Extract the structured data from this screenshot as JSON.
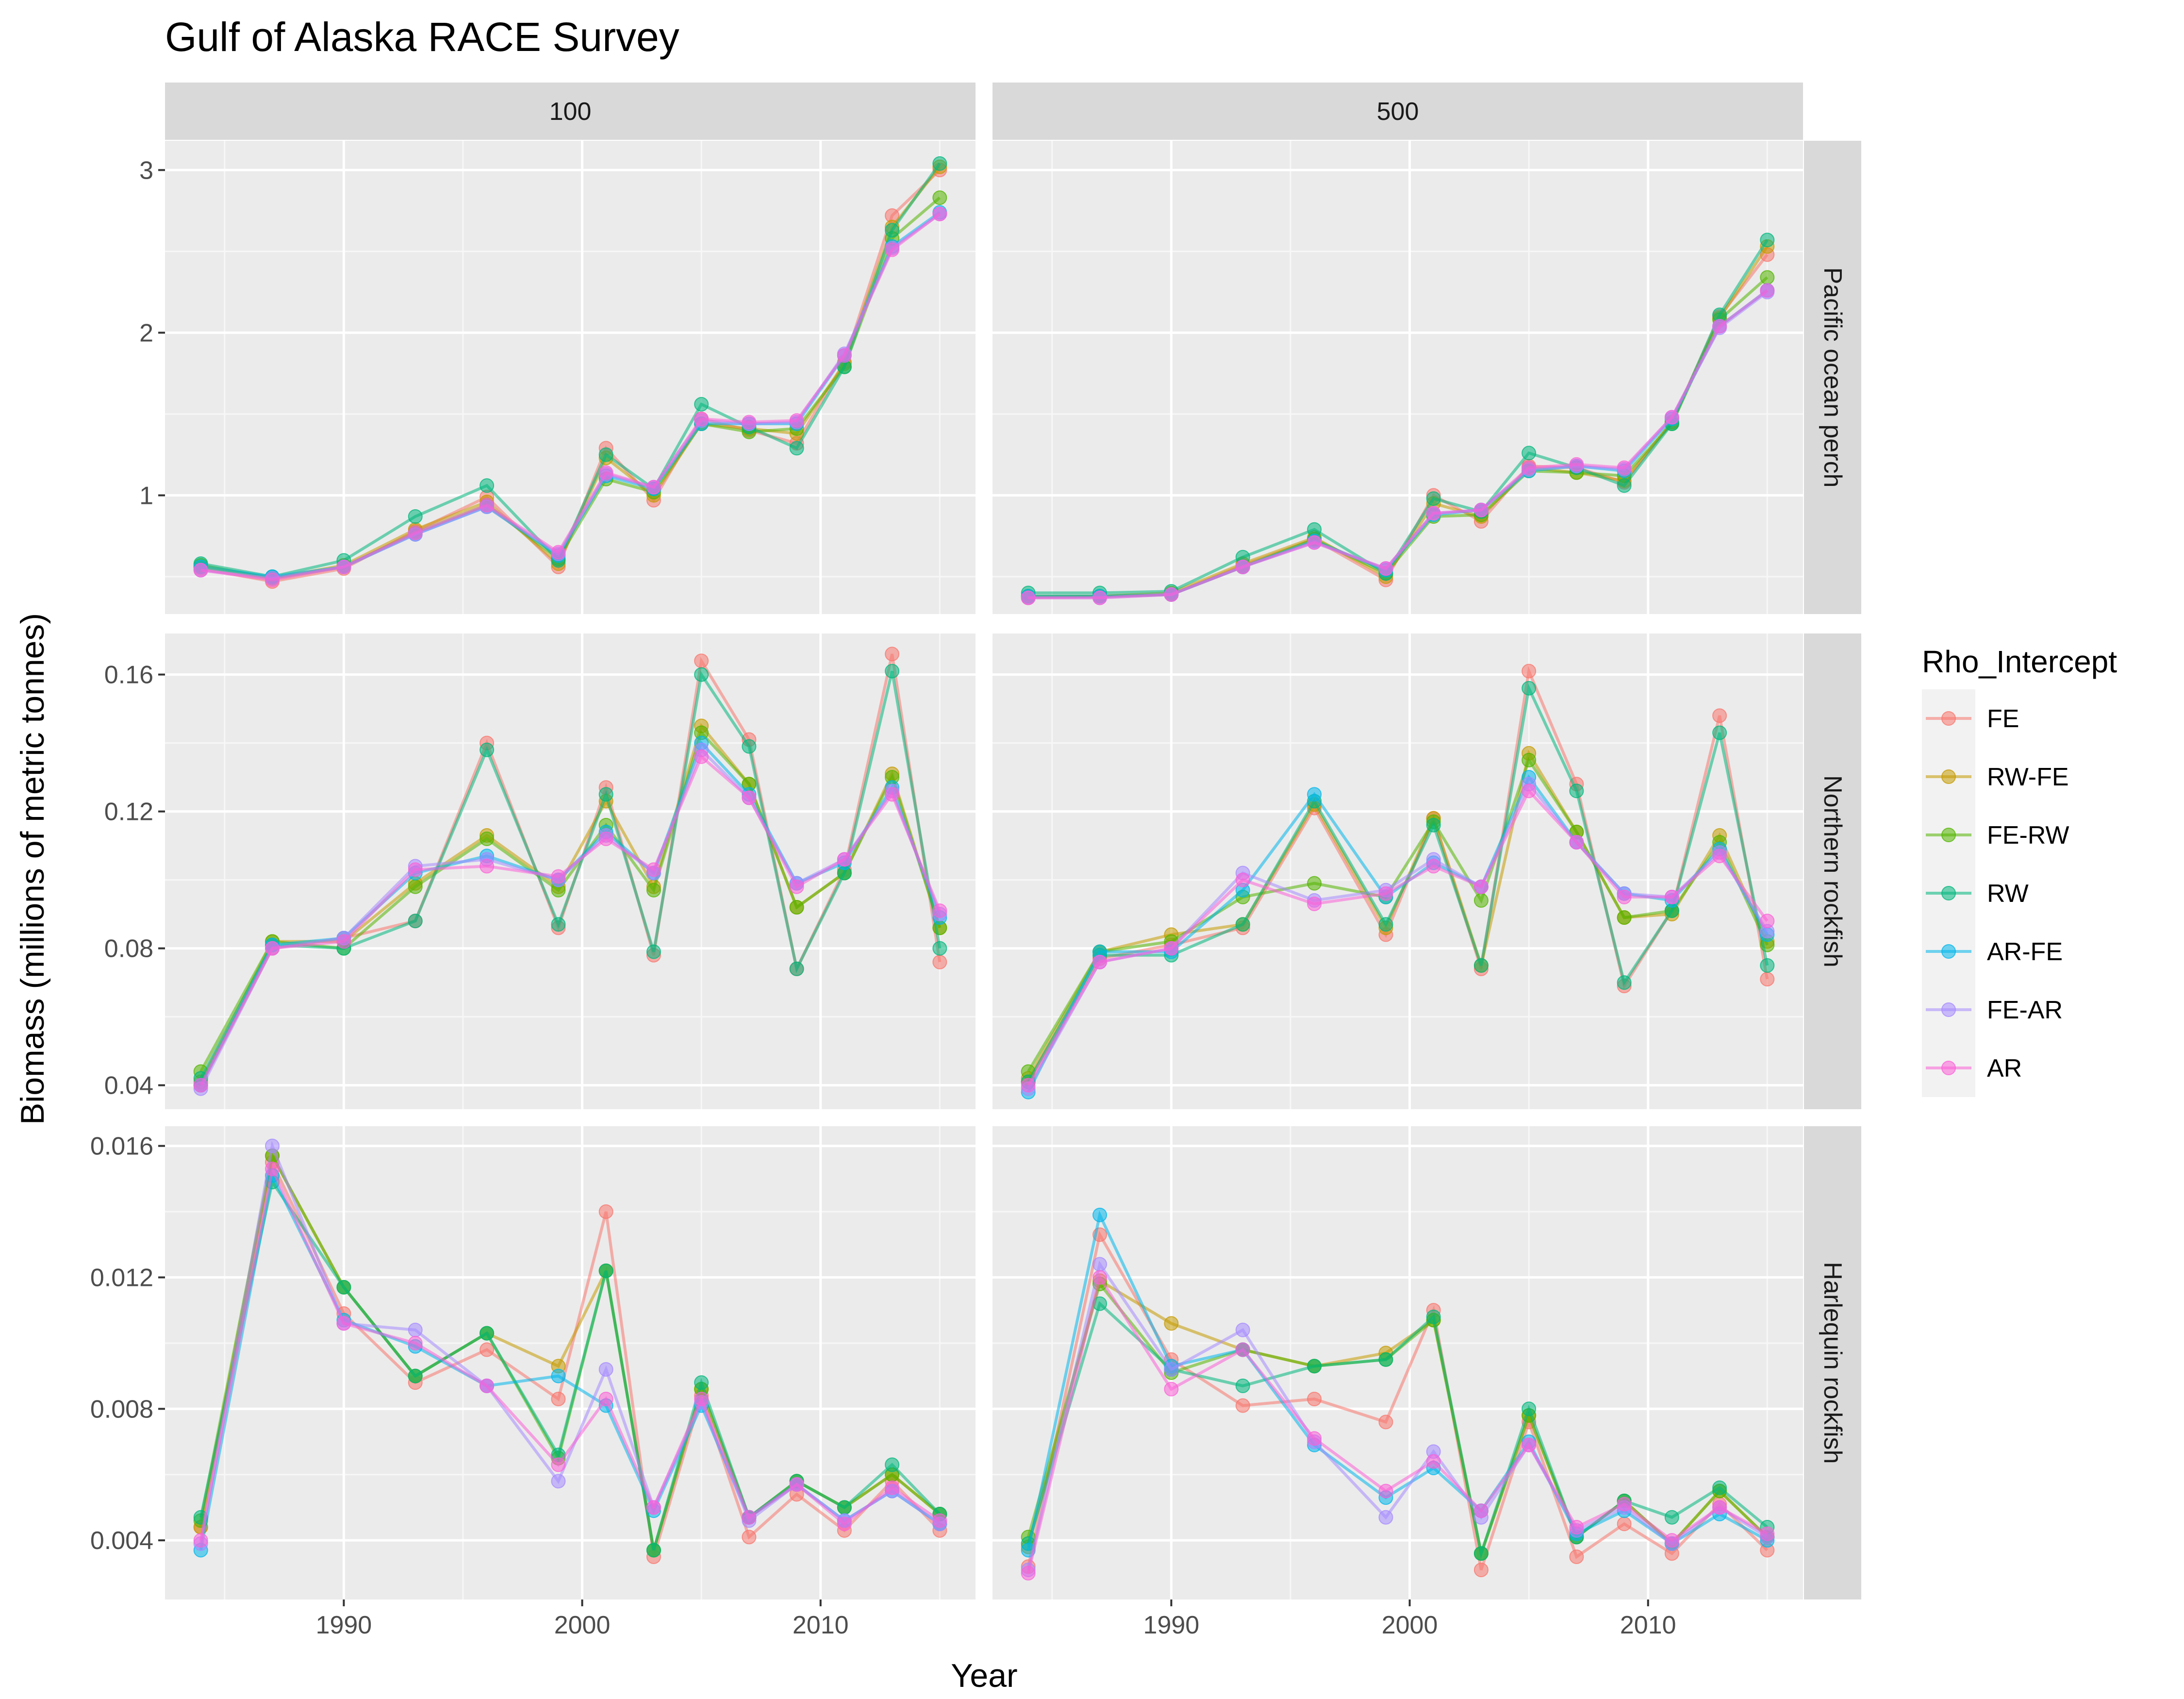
{
  "chart_data": {
    "type": "line",
    "title": "Gulf of Alaska RACE Survey",
    "xlabel": "Year",
    "ylabel": "Biomass (millions of metric tonnes)",
    "x_ticks": [
      "1990",
      "2000",
      "2010"
    ],
    "x_tick_values": [
      1990,
      2000,
      2010
    ],
    "xlim": [
      1982.5,
      2016.5
    ],
    "x": [
      1984,
      1987,
      1990,
      1993,
      1996,
      1999,
      2001,
      2003,
      2005,
      2007,
      2009,
      2011,
      2013,
      2015
    ],
    "legend_title": "Rho_Intercept",
    "legend_position": "right",
    "grid": true,
    "columns": [
      "100",
      "500"
    ],
    "rows": [
      {
        "label": "Pacific ocean perch",
        "ylim": [
          0.27,
          3.18
        ],
        "ticks": [
          1,
          2,
          3
        ],
        "tick_labels": [
          "1",
          "2",
          "3"
        ]
      },
      {
        "label": "Northern rockfish",
        "ylim": [
          0.033,
          0.172
        ],
        "ticks": [
          0.04,
          0.08,
          0.12,
          0.16
        ],
        "tick_labels": [
          "0.04",
          "0.08",
          "0.12",
          "0.16"
        ]
      },
      {
        "label": "Harlequin rockfish",
        "ylim": [
          0.0022,
          0.0166
        ],
        "ticks": [
          0.004,
          0.008,
          0.012,
          0.016
        ],
        "tick_labels": [
          "0.004",
          "0.008",
          "0.012",
          "0.016"
        ]
      }
    ],
    "series": [
      {
        "name": "FE",
        "color": "#F8766D"
      },
      {
        "name": "RW-FE",
        "color": "#C49A00"
      },
      {
        "name": "FE-RW",
        "color": "#53B400"
      },
      {
        "name": "RW",
        "color": "#00B67C"
      },
      {
        "name": "AR-FE",
        "color": "#00B6EB"
      },
      {
        "name": "FE-AR",
        "color": "#A58AFF"
      },
      {
        "name": "AR",
        "color": "#FB61D7"
      }
    ],
    "panels": [
      {
        "row": 0,
        "col": 0,
        "values": {
          "FE": [
            0.55,
            0.47,
            0.55,
            0.78,
            0.99,
            0.56,
            1.29,
            0.97,
            1.47,
            1.4,
            1.32,
            1.82,
            2.72,
            3.0
          ],
          "RW-FE": [
            0.56,
            0.49,
            0.57,
            0.79,
            0.96,
            0.58,
            1.23,
            1.0,
            1.44,
            1.41,
            1.38,
            1.81,
            2.65,
            3.02
          ],
          "FE-RW": [
            0.57,
            0.49,
            0.56,
            0.77,
            0.94,
            0.61,
            1.1,
            1.02,
            1.44,
            1.39,
            1.41,
            1.79,
            2.58,
            2.83
          ],
          "RW": [
            0.58,
            0.5,
            0.6,
            0.87,
            1.06,
            0.6,
            1.25,
            1.04,
            1.56,
            1.42,
            1.29,
            1.79,
            2.63,
            3.04
          ],
          "AR-FE": [
            0.56,
            0.5,
            0.56,
            0.76,
            0.93,
            0.63,
            1.12,
            1.04,
            1.44,
            1.44,
            1.44,
            1.86,
            2.53,
            2.74
          ],
          "FE-AR": [
            0.54,
            0.49,
            0.56,
            0.76,
            0.93,
            0.64,
            1.13,
            1.05,
            1.46,
            1.44,
            1.45,
            1.87,
            2.52,
            2.73
          ],
          "AR": [
            0.54,
            0.48,
            0.56,
            0.77,
            0.94,
            0.65,
            1.14,
            1.05,
            1.47,
            1.45,
            1.46,
            1.86,
            2.51,
            2.73
          ]
        }
      },
      {
        "row": 0,
        "col": 1,
        "values": {
          "FE": [
            0.37,
            0.38,
            0.39,
            0.57,
            0.73,
            0.48,
            1.0,
            0.84,
            1.18,
            1.17,
            1.08,
            1.45,
            2.1,
            2.48
          ],
          "RW-FE": [
            0.38,
            0.38,
            0.4,
            0.58,
            0.74,
            0.5,
            0.95,
            0.87,
            1.17,
            1.14,
            1.09,
            1.45,
            2.09,
            2.53
          ],
          "FE-RW": [
            0.38,
            0.38,
            0.39,
            0.56,
            0.73,
            0.52,
            0.87,
            0.88,
            1.15,
            1.14,
            1.12,
            1.44,
            2.08,
            2.34
          ],
          "RW": [
            0.4,
            0.4,
            0.41,
            0.62,
            0.79,
            0.52,
            0.98,
            0.9,
            1.26,
            1.17,
            1.06,
            1.44,
            2.11,
            2.57
          ],
          "AR-FE": [
            0.38,
            0.38,
            0.39,
            0.56,
            0.72,
            0.54,
            0.88,
            0.91,
            1.15,
            1.18,
            1.15,
            1.47,
            2.04,
            2.26
          ],
          "FE-AR": [
            0.37,
            0.37,
            0.39,
            0.56,
            0.71,
            0.55,
            0.89,
            0.91,
            1.16,
            1.18,
            1.16,
            1.48,
            2.03,
            2.25
          ],
          "AR": [
            0.37,
            0.37,
            0.39,
            0.56,
            0.71,
            0.55,
            0.89,
            0.91,
            1.17,
            1.19,
            1.17,
            1.48,
            2.04,
            2.26
          ]
        }
      },
      {
        "row": 1,
        "col": 0,
        "values": {
          "FE": [
            0.04,
            0.08,
            0.083,
            0.088,
            0.14,
            0.086,
            0.127,
            0.078,
            0.164,
            0.141,
            0.074,
            0.103,
            0.166,
            0.076
          ],
          "RW-FE": [
            0.041,
            0.082,
            0.082,
            0.099,
            0.113,
            0.098,
            0.123,
            0.098,
            0.145,
            0.128,
            0.092,
            0.102,
            0.131,
            0.086
          ],
          "FE-RW": [
            0.044,
            0.082,
            0.08,
            0.098,
            0.112,
            0.097,
            0.116,
            0.097,
            0.143,
            0.128,
            0.092,
            0.102,
            0.13,
            0.086
          ],
          "RW": [
            0.042,
            0.081,
            0.08,
            0.088,
            0.138,
            0.087,
            0.125,
            0.079,
            0.16,
            0.139,
            0.074,
            0.102,
            0.161,
            0.08
          ],
          "AR-FE": [
            0.04,
            0.081,
            0.083,
            0.102,
            0.107,
            0.1,
            0.114,
            0.102,
            0.14,
            0.125,
            0.099,
            0.105,
            0.127,
            0.089
          ],
          "FE-AR": [
            0.039,
            0.08,
            0.083,
            0.104,
            0.106,
            0.1,
            0.113,
            0.102,
            0.138,
            0.124,
            0.099,
            0.106,
            0.126,
            0.09
          ],
          "AR": [
            0.04,
            0.08,
            0.082,
            0.103,
            0.104,
            0.101,
            0.112,
            0.103,
            0.136,
            0.124,
            0.098,
            0.106,
            0.125,
            0.091
          ]
        }
      },
      {
        "row": 1,
        "col": 1,
        "values": {
          "FE": [
            0.041,
            0.077,
            0.081,
            0.086,
            0.121,
            0.084,
            0.118,
            0.074,
            0.161,
            0.128,
            0.069,
            0.091,
            0.148,
            0.071
          ],
          "RW-FE": [
            0.042,
            0.079,
            0.084,
            0.087,
            0.122,
            0.086,
            0.118,
            0.075,
            0.137,
            0.114,
            0.089,
            0.09,
            0.113,
            0.082
          ],
          "FE-RW": [
            0.044,
            0.079,
            0.082,
            0.095,
            0.099,
            0.095,
            0.117,
            0.094,
            0.135,
            0.114,
            0.089,
            0.091,
            0.111,
            0.081
          ],
          "RW": [
            0.041,
            0.078,
            0.078,
            0.087,
            0.123,
            0.087,
            0.116,
            0.075,
            0.156,
            0.126,
            0.07,
            0.091,
            0.143,
            0.075
          ],
          "AR-FE": [
            0.038,
            0.079,
            0.079,
            0.097,
            0.125,
            0.095,
            0.105,
            0.098,
            0.13,
            0.111,
            0.096,
            0.094,
            0.109,
            0.084
          ],
          "FE-AR": [
            0.039,
            0.076,
            0.08,
            0.102,
            0.094,
            0.097,
            0.106,
            0.098,
            0.128,
            0.111,
            0.096,
            0.095,
            0.108,
            0.085
          ],
          "AR": [
            0.04,
            0.076,
            0.08,
            0.1,
            0.093,
            0.096,
            0.104,
            0.098,
            0.126,
            0.111,
            0.095,
            0.095,
            0.107,
            0.088
          ]
        }
      },
      {
        "row": 2,
        "col": 0,
        "values": {
          "FE": [
            0.0044,
            0.0155,
            0.0109,
            0.0088,
            0.0098,
            0.0083,
            0.014,
            0.0035,
            0.0084,
            0.0041,
            0.0054,
            0.0043,
            0.0058,
            0.0043
          ],
          "RW-FE": [
            0.0044,
            0.0157,
            0.0117,
            0.009,
            0.0103,
            0.0093,
            0.0122,
            0.0037,
            0.0086,
            0.0047,
            0.0058,
            0.005,
            0.006,
            0.0048
          ],
          "FE-RW": [
            0.0046,
            0.0157,
            0.0117,
            0.009,
            0.0103,
            0.0065,
            0.0122,
            0.0037,
            0.0086,
            0.0047,
            0.0058,
            0.005,
            0.006,
            0.0048
          ],
          "RW": [
            0.0047,
            0.0149,
            0.0117,
            0.009,
            0.0103,
            0.0066,
            0.0122,
            0.0037,
            0.0088,
            0.0047,
            0.0058,
            0.005,
            0.0063,
            0.0048
          ],
          "AR-FE": [
            0.0037,
            0.0151,
            0.0107,
            0.0099,
            0.0087,
            0.009,
            0.0081,
            0.0049,
            0.0081,
            0.0047,
            0.0057,
            0.0046,
            0.0055,
            0.0045
          ],
          "FE-AR": [
            0.0039,
            0.016,
            0.0106,
            0.0104,
            0.0087,
            0.0058,
            0.0092,
            0.005,
            0.0082,
            0.0046,
            0.0057,
            0.0046,
            0.0055,
            0.0045
          ],
          "AR": [
            0.004,
            0.0153,
            0.0106,
            0.01,
            0.0087,
            0.0063,
            0.0083,
            0.005,
            0.0083,
            0.0047,
            0.0057,
            0.0045,
            0.0056,
            0.0046
          ]
        }
      },
      {
        "row": 2,
        "col": 1,
        "values": {
          "FE": [
            0.0032,
            0.0133,
            0.0095,
            0.0081,
            0.0083,
            0.0076,
            0.011,
            0.0031,
            0.0076,
            0.0035,
            0.0045,
            0.0036,
            0.0051,
            0.0037
          ],
          "RW-FE": [
            0.0038,
            0.0119,
            0.0106,
            0.0098,
            0.0093,
            0.0097,
            0.0107,
            0.0036,
            0.0078,
            0.0041,
            0.0052,
            0.0039,
            0.0055,
            0.0041
          ],
          "FE-RW": [
            0.0041,
            0.0118,
            0.0091,
            0.0098,
            0.0093,
            0.0095,
            0.0107,
            0.0036,
            0.0078,
            0.0041,
            0.0052,
            0.0039,
            0.0055,
            0.0041
          ],
          "RW": [
            0.0039,
            0.0112,
            0.0092,
            0.0087,
            0.0093,
            0.0095,
            0.0108,
            0.0036,
            0.008,
            0.0041,
            0.0052,
            0.0047,
            0.0056,
            0.0044
          ],
          "AR-FE": [
            0.0037,
            0.0139,
            0.0093,
            0.0098,
            0.0069,
            0.0053,
            0.0062,
            0.0049,
            0.007,
            0.0042,
            0.0049,
            0.0039,
            0.0048,
            0.004
          ],
          "FE-AR": [
            0.0031,
            0.0124,
            0.0092,
            0.0104,
            0.007,
            0.0047,
            0.0067,
            0.0047,
            0.0069,
            0.0043,
            0.005,
            0.0039,
            0.005,
            0.0041
          ],
          "AR": [
            0.003,
            0.012,
            0.0086,
            0.0098,
            0.0071,
            0.0055,
            0.0064,
            0.0049,
            0.0069,
            0.0044,
            0.0051,
            0.004,
            0.005,
            0.0042
          ]
        }
      }
    ]
  }
}
